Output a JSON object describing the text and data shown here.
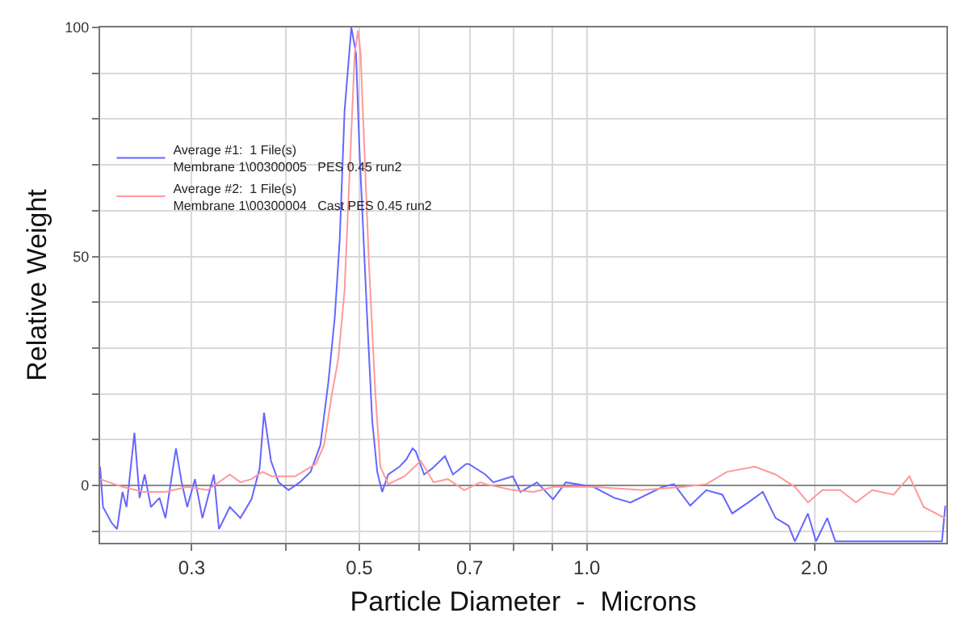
{
  "chart_data": {
    "type": "line",
    "xlabel": "Particle Diameter  -  Microns",
    "ylabel": "Relative Weight",
    "log": "x",
    "grid": true,
    "legend": "top left",
    "marker": "none",
    "line_style": "solid",
    "xlim": [
      0.227,
      2.99
    ],
    "ylim": [
      -12.5,
      100
    ],
    "xticks": [
      {
        "value": 0.3,
        "label": "0.3"
      },
      {
        "value": 0.4,
        "label": null
      },
      {
        "value": 0.5,
        "label": "0.5"
      },
      {
        "value": 0.6,
        "label": null
      },
      {
        "value": 0.7,
        "label": "0.7"
      },
      {
        "value": 0.8,
        "label": null
      },
      {
        "value": 0.9,
        "label": null
      },
      {
        "value": 1.0,
        "label": "1.0"
      },
      {
        "value": 2.0,
        "label": "2.0"
      }
    ],
    "yticks": [
      {
        "value": -10,
        "label": null
      },
      0,
      {
        "value": 10,
        "label": null
      },
      {
        "value": 20,
        "label": null
      },
      {
        "value": 30,
        "label": null
      },
      {
        "value": 40,
        "label": null
      },
      50,
      {
        "value": 60,
        "label": null
      },
      {
        "value": 70,
        "label": null
      },
      {
        "value": 80,
        "label": null
      },
      {
        "value": 90,
        "label": null
      },
      100
    ],
    "series": [
      {
        "name": "Average #1:  1 File(s)\nMembrane 1\\00300005   PES 0.45 run2",
        "color": "#6666ff",
        "x": [
          0.227,
          0.229,
          0.235,
          0.239,
          0.243,
          0.246,
          0.252,
          0.256,
          0.26,
          0.265,
          0.272,
          0.277,
          0.286,
          0.291,
          0.296,
          0.303,
          0.31,
          0.321,
          0.326,
          0.337,
          0.348,
          0.36,
          0.369,
          0.374,
          0.382,
          0.391,
          0.403,
          0.417,
          0.431,
          0.444,
          0.455,
          0.464,
          0.471,
          0.478,
          0.488,
          0.495,
          0.5,
          0.512,
          0.52,
          0.528,
          0.536,
          0.546,
          0.565,
          0.577,
          0.588,
          0.594,
          0.609,
          0.624,
          0.649,
          0.665,
          0.692,
          0.698,
          0.734,
          0.752,
          0.798,
          0.817,
          0.859,
          0.902,
          0.938,
          1.02,
          1.087,
          1.142,
          1.26,
          1.304,
          1.37,
          1.439,
          1.511,
          1.557,
          1.635,
          1.709,
          1.777,
          1.849,
          1.885,
          1.961,
          2.01,
          2.08,
          2.132,
          2.95,
          2.98
        ],
        "values": [
          4.1,
          -4.7,
          -8.1,
          -9.5,
          -1.4,
          -4.7,
          11.5,
          -2.7,
          2.4,
          -4.7,
          -2.7,
          -7.1,
          8.1,
          0.7,
          -4.7,
          1.4,
          -7.1,
          2.4,
          -9.5,
          -4.7,
          -7.1,
          -3.0,
          3.7,
          15.9,
          5.4,
          0.7,
          -1.0,
          0.7,
          3.0,
          8.8,
          22.6,
          36.8,
          53.7,
          81.8,
          100,
          94.3,
          74,
          36.8,
          14.2,
          3.0,
          -1.4,
          2.4,
          4.1,
          5.7,
          8.1,
          7.4,
          2.4,
          3.7,
          6.4,
          2.4,
          4.7,
          4.7,
          2.4,
          0.7,
          2.0,
          -1.4,
          0.7,
          -3.0,
          0.7,
          -0.3,
          -2.7,
          -3.7,
          -0.3,
          0.3,
          -4.4,
          -1.0,
          -2.0,
          -6.1,
          -3.7,
          -1.4,
          -7.1,
          -8.8,
          -12.2,
          -6.1,
          -12.2,
          -7.1,
          -12.2,
          -12.2,
          -4.4
        ]
      },
      {
        "name": "Average #2:  1 File(s)\nMembrane 1\\00300004   Cast PES 0.45 run2",
        "color": "#ff9999",
        "x": [
          0.227,
          0.243,
          0.259,
          0.277,
          0.296,
          0.315,
          0.337,
          0.348,
          0.36,
          0.372,
          0.383,
          0.411,
          0.438,
          0.449,
          0.46,
          0.469,
          0.478,
          0.493,
          0.498,
          0.502,
          0.507,
          0.515,
          0.525,
          0.533,
          0.546,
          0.574,
          0.603,
          0.627,
          0.655,
          0.688,
          0.723,
          0.734,
          0.798,
          0.85,
          0.906,
          1.02,
          1.182,
          1.343,
          1.439,
          1.533,
          1.668,
          1.777,
          1.885,
          1.961,
          2.05,
          2.163,
          2.27,
          2.385,
          2.545,
          2.672,
          2.79,
          2.975
        ],
        "values": [
          1.4,
          -0.3,
          -1.4,
          -1.4,
          -0.3,
          -1.0,
          2.4,
          0.7,
          1.4,
          3.0,
          2.0,
          2.0,
          4.7,
          8.8,
          20,
          27.7,
          42.6,
          94.3,
          99.3,
          94.3,
          76,
          48,
          20,
          4.1,
          0.3,
          2.0,
          5.4,
          0.7,
          1.4,
          -1.0,
          0.7,
          0.3,
          -1.0,
          -1.4,
          -0.3,
          -0.3,
          -1.0,
          -0.3,
          0.3,
          3.0,
          4.1,
          2.4,
          -0.3,
          -3.7,
          -1.0,
          -1.0,
          -3.7,
          -1.0,
          -2.0,
          2.0,
          -4.7,
          -7.1
        ]
      }
    ]
  }
}
